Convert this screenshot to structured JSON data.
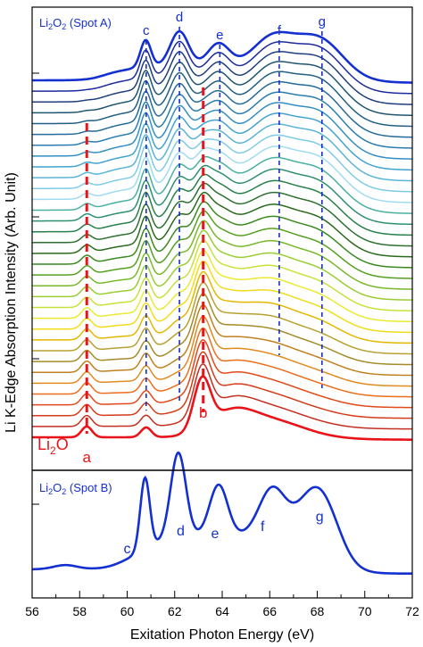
{
  "chart_data": {
    "type": "line",
    "xlabel": "Exitation Photon Energy (eV)",
    "ylabel": "Li K-Edge Absorption Intensity (Arb. Unit)",
    "xlim": [
      56,
      72
    ],
    "xticks": [
      "56",
      "58",
      "60",
      "62",
      "64",
      "66",
      "68",
      "70",
      "72"
    ],
    "grid": false,
    "colors": {
      "li2o2": "#1530d0",
      "li2o": "#e8141a",
      "label_red": "#e8141a",
      "label_blue": "#1530d0"
    },
    "top_panel": {
      "top_label": "Li2O2 (Spot A)",
      "bottom_label": "Li2O",
      "peak_markers_blue": [
        {
          "label": "c",
          "x": 60.8
        },
        {
          "label": "d",
          "x": 62.2
        },
        {
          "label": "e",
          "x": 63.9
        },
        {
          "label": "f",
          "x": 66.4
        },
        {
          "label": "g",
          "x": 68.2
        }
      ],
      "peak_markers_red": [
        {
          "label": "a",
          "x": 58.3
        },
        {
          "label": "b",
          "x": 63.2
        }
      ],
      "series": [
        {
          "name": "Li2O2 (Spot A)",
          "color": "#1530d0"
        },
        {
          "color": "#1c2a9a"
        },
        {
          "color": "#1f3f7c"
        },
        {
          "color": "#1f556e"
        },
        {
          "color": "#215f84"
        },
        {
          "color": "#246a9a"
        },
        {
          "color": "#2a7cb0"
        },
        {
          "color": "#338fc2"
        },
        {
          "color": "#41a3cf"
        },
        {
          "color": "#5ab4d8"
        },
        {
          "color": "#7fcbe6"
        },
        {
          "color": "#9fdcef"
        },
        {
          "color": "#48b0a0"
        },
        {
          "color": "#2e8f70"
        },
        {
          "color": "#25804a"
        },
        {
          "color": "#2d7030"
        },
        {
          "color": "#2a6a1c"
        },
        {
          "color": "#3a8a20"
        },
        {
          "color": "#55a020"
        },
        {
          "color": "#78b82a"
        },
        {
          "color": "#9acd32"
        },
        {
          "color": "#c7e23a"
        },
        {
          "color": "#eaea30"
        },
        {
          "color": "#f1dc1a"
        },
        {
          "color": "#e4b800"
        },
        {
          "color": "#b8a030"
        },
        {
          "color": "#a48c28"
        },
        {
          "color": "#c08020"
        },
        {
          "color": "#e08a20"
        },
        {
          "color": "#ea6e1c"
        },
        {
          "color": "#e24818"
        },
        {
          "color": "#d43c18"
        },
        {
          "color": "#c42e1e"
        },
        {
          "name": "Li2O",
          "color": "#e8141a"
        }
      ]
    },
    "bottom_panel": {
      "label": "Li2O2 (Spot B)",
      "peak_labels": [
        "c",
        "d",
        "e",
        "f",
        "g"
      ]
    }
  }
}
